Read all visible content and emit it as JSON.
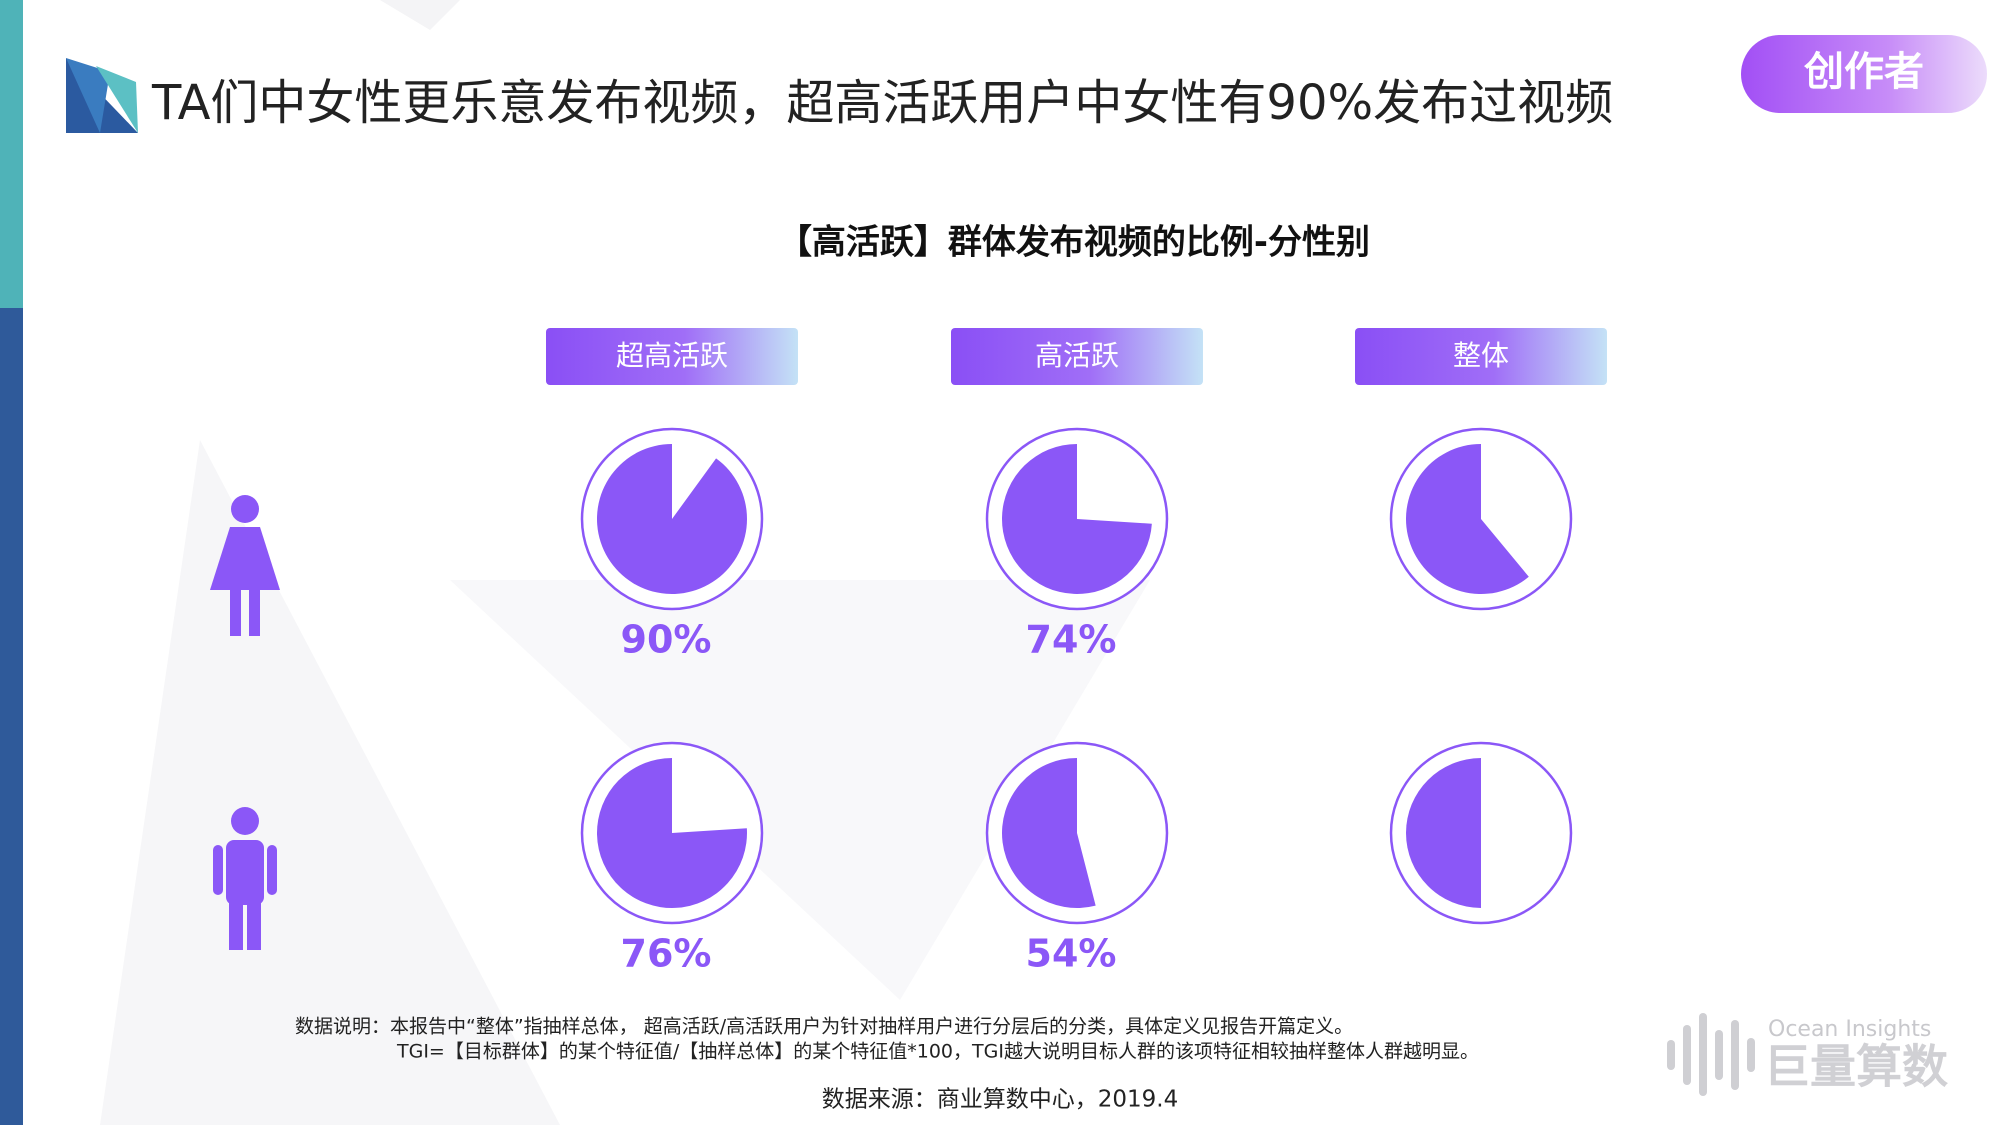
{
  "header": {
    "title": "TA们中女性更乐意发布视频，超高活跃用户中女性有90%发布过视频",
    "badge": "创作者"
  },
  "chart_data": {
    "type": "pie",
    "title": "【高活跃】群体发布视频的比例-分性别",
    "categories": [
      "超高活跃",
      "高活跃",
      "整体"
    ],
    "series": [
      {
        "color": "#8b57f7",
        "values": [
          90,
          74,
          61
        ],
        "value_labels": [
          "90%",
          "74%",
          null
        ]
      },
      {
        "color": "#8b57f7",
        "values": [
          76,
          54,
          50
        ],
        "value_labels": [
          "76%",
          "54%",
          null
        ]
      }
    ]
  },
  "notes": [
    "数据说明：本报告中“整体”指抽样总体， 超高活跃/高活跃用户为针对抽样用户进行分层后的分类，具体定义见报告开篇定义。",
    "TGI=【目标群体】的某个特征值/【抽样总体】的某个特征值*100，TGI越大说明目标人群的该项特征相较抽样整体人群越明显。"
  ],
  "source": "数据来源：商业算数中心，2019.4",
  "logo": {
    "en": "Ocean Insights",
    "cn": "巨量算数"
  }
}
